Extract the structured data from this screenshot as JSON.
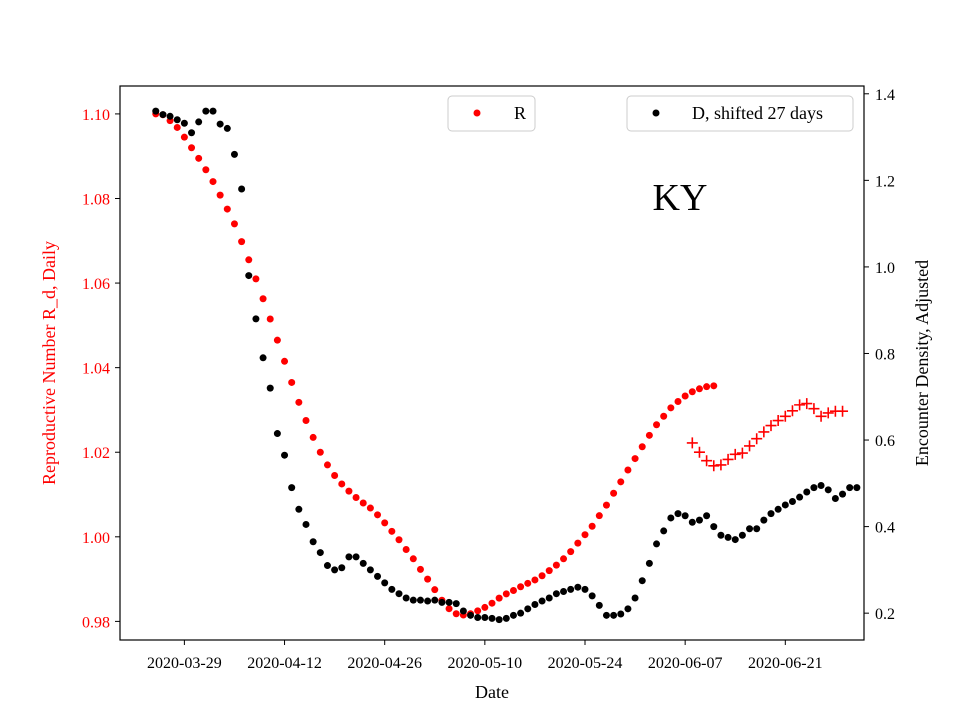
{
  "chart_data": {
    "type": "scatter",
    "annotation": "KY",
    "xlabel": "Date",
    "ylabel_left": "Reproductive Number R_d, Daily",
    "ylabel_right": "Encounter Density, Adjusted",
    "x_ticks": [
      "2020-03-29",
      "2020-04-12",
      "2020-04-26",
      "2020-05-10",
      "2020-05-24",
      "2020-06-07",
      "2020-06-21"
    ],
    "y_left_ticks": [
      0.98,
      1.0,
      1.02,
      1.04,
      1.06,
      1.08,
      1.1
    ],
    "y_right_ticks": [
      0.2,
      0.4,
      0.6,
      0.8,
      1.0,
      1.2,
      1.4
    ],
    "xlim": [
      "2020-03-20",
      "2020-07-02"
    ],
    "ylim_left": [
      0.9756,
      1.1066
    ],
    "ylim_right": [
      0.138,
      1.418
    ],
    "grid": false,
    "colors": {
      "R": "#ff0000",
      "D": "#000000",
      "left_axis": "#ff0000"
    },
    "legends": [
      {
        "label": "R",
        "color": "#ff0000",
        "position": "top-center"
      },
      {
        "label": "D, shifted 27 days",
        "color": "#000000",
        "position": "top-right"
      }
    ],
    "series": [
      {
        "name": "R",
        "axis": "left",
        "marker": "dot",
        "color": "#ff0000",
        "start_date": "2020-03-25",
        "values": [
          1.1,
          1.0998,
          1.0984,
          1.0968,
          1.0945,
          1.092,
          1.0895,
          1.0868,
          1.084,
          1.0808,
          1.0775,
          1.074,
          1.0698,
          1.0655,
          1.061,
          1.0563,
          1.0515,
          1.0465,
          1.0415,
          1.0365,
          1.0318,
          1.0275,
          1.0235,
          1.02,
          1.017,
          1.0145,
          1.0125,
          1.0108,
          1.0093,
          1.008,
          1.0068,
          1.0052,
          1.0033,
          1.0013,
          0.9993,
          0.997,
          0.9948,
          0.9923,
          0.99,
          0.9875,
          0.985,
          0.983,
          0.9818,
          0.9815,
          0.9818,
          0.9825,
          0.9833,
          0.9843,
          0.9855,
          0.9865,
          0.9873,
          0.9882,
          0.989,
          0.9898,
          0.9908,
          0.992,
          0.9933,
          0.9948,
          0.9965,
          0.9985,
          1.0005,
          1.0025,
          1.005,
          1.0075,
          1.0103,
          1.013,
          1.0158,
          1.0185,
          1.0213,
          1.024,
          1.0265,
          1.0285,
          1.0305,
          1.032,
          1.0333,
          1.0343,
          1.035,
          1.0355,
          1.0357
        ]
      },
      {
        "name": "R",
        "axis": "left",
        "marker": "plus",
        "color": "#ff0000",
        "start_date": "2020-06-08",
        "values": [
          1.0222,
          1.02,
          1.018,
          1.0168,
          1.017,
          1.0183,
          1.0195,
          1.0198,
          1.0215,
          1.0232,
          1.0248,
          1.0263,
          1.0275,
          1.0285,
          1.0298,
          1.0312,
          1.0315,
          1.0303,
          1.0285,
          1.0293,
          1.0297,
          1.0297
        ]
      },
      {
        "name": "D, shifted 27 days",
        "axis": "right",
        "marker": "dot",
        "color": "#000000",
        "start_date": "2020-03-25",
        "values": [
          1.36,
          1.352,
          1.348,
          1.34,
          1.332,
          1.31,
          1.335,
          1.36,
          1.36,
          1.33,
          1.32,
          1.26,
          1.18,
          0.98,
          0.88,
          0.79,
          0.72,
          0.615,
          0.565,
          0.49,
          0.44,
          0.405,
          0.365,
          0.34,
          0.31,
          0.3,
          0.305,
          0.33,
          0.33,
          0.315,
          0.3,
          0.285,
          0.27,
          0.255,
          0.245,
          0.235,
          0.23,
          0.23,
          0.228,
          0.23,
          0.225,
          0.225,
          0.222,
          0.205,
          0.195,
          0.19,
          0.19,
          0.188,
          0.185,
          0.188,
          0.195,
          0.2,
          0.21,
          0.22,
          0.228,
          0.235,
          0.245,
          0.25,
          0.255,
          0.26,
          0.255,
          0.24,
          0.218,
          0.195,
          0.195,
          0.198,
          0.21,
          0.235,
          0.275,
          0.315,
          0.36,
          0.39,
          0.42,
          0.43,
          0.425,
          0.41,
          0.415,
          0.425,
          0.4,
          0.38,
          0.375,
          0.37,
          0.38,
          0.395,
          0.395,
          0.415,
          0.43,
          0.44,
          0.45,
          0.458,
          0.468,
          0.48,
          0.49,
          0.495,
          0.485,
          0.465,
          0.475,
          0.49,
          0.49
        ]
      }
    ]
  }
}
